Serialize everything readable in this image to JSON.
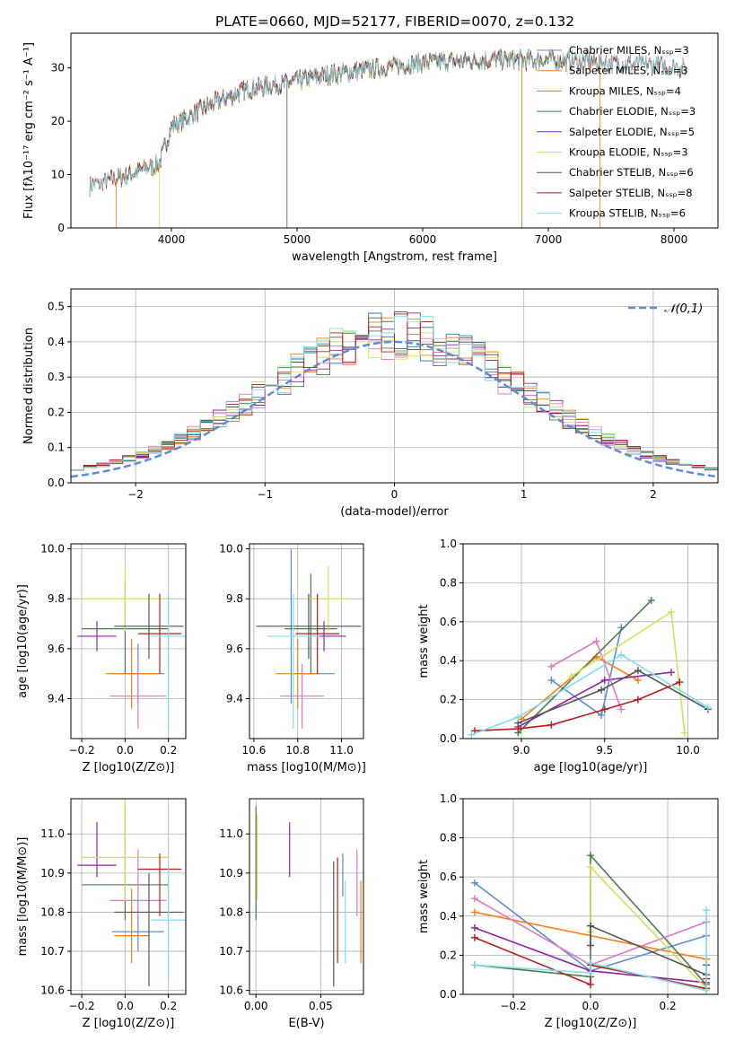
{
  "figure_title": "PLATE=0660, MJD=52177, FIBERID=0070, z=0.132",
  "chart_data": [
    {
      "id": "spectrum",
      "type": "line",
      "xlabel": "wavelength [Angstrom, rest frame]",
      "ylabel": "Flux [fλ10⁻¹⁷ erg cm⁻² s⁻¹ A⁻¹]",
      "xlim": [
        3200,
        8350
      ],
      "ylim": [
        0,
        36.5
      ],
      "xticks": [
        4000,
        5000,
        6000,
        7000,
        8000
      ],
      "yticks": [
        0,
        10,
        20,
        30
      ],
      "grid": false,
      "legend_position": "top-right",
      "continuum": {
        "x": [
          3350,
          3600,
          3900,
          4000,
          4300,
          4600,
          4900,
          5200,
          5500,
          6000,
          6500,
          7000,
          7500,
          8100
        ],
        "y": [
          8,
          9.5,
          12,
          19,
          23,
          26,
          27,
          28.5,
          29.5,
          31,
          31.5,
          31.5,
          31,
          30
        ]
      },
      "series": [
        {
          "name": "Chabrier MILES, N_SSP=3",
          "color": "#6a8fd6",
          "x_range": [
            3550,
            7400
          ]
        },
        {
          "name": "Salpeter MILES, N_SSP=3",
          "color": "#ff7f0e",
          "x_range": [
            3550,
            7400
          ]
        },
        {
          "name": "Kroupa MILES, N_SSP=4",
          "color": "#b8860b",
          "x_range": [
            3550,
            7400
          ]
        },
        {
          "name": "Chabrier ELODIE, N_SSP=3",
          "color": "#4c7d4c",
          "x_range": [
            3900,
            6800
          ]
        },
        {
          "name": "Salpeter ELODIE, N_SSP=5",
          "color": "#8e24aa",
          "x_range": [
            3900,
            6800
          ]
        },
        {
          "name": "Kroupa ELODIE, N_SSP=3",
          "color": "#d4e157",
          "x_range": [
            3900,
            6800
          ]
        },
        {
          "name": "Chabrier STELIB, N_SSP=6",
          "color": "#555555",
          "x_range": [
            3350,
            8100
          ]
        },
        {
          "name": "Salpeter STELIB, N_SSP=8",
          "color": "#b71c1c",
          "x_range": [
            3350,
            8100
          ]
        },
        {
          "name": "Kroupa STELIB, N_SSP=6",
          "color": "#80deea",
          "x_range": [
            3350,
            8100
          ]
        }
      ]
    },
    {
      "id": "residuals",
      "type": "histogram",
      "xlabel": "(data-model)/error",
      "ylabel": "Normed distribution",
      "xlim": [
        -2.5,
        2.5
      ],
      "ylim": [
        0,
        0.55
      ],
      "xticks": [
        -2,
        -1,
        0,
        1,
        2
      ],
      "yticks": [
        0.0,
        0.1,
        0.2,
        0.3,
        0.4,
        0.5
      ],
      "grid": true,
      "bin_width": 0.1,
      "reference_curve": {
        "name": "𝒩(0,1)",
        "mean": 0,
        "sigma": 1,
        "color": "#5b8ed6"
      },
      "legend_position": "top-right",
      "series_colors": [
        "#1f77b4",
        "#ff7f0e",
        "#4c7d4c",
        "#8e24aa",
        "#e377c2",
        "#d4e157",
        "#555555",
        "#b71c1c",
        "#80deea"
      ]
    },
    {
      "id": "age_vs_Z",
      "type": "errorbar",
      "xlabel": "Z [log10(Z/Z⊙)]",
      "ylabel": "age  [log10(age/yr)]",
      "xlim": [
        -0.25,
        0.28
      ],
      "ylim": [
        9.24,
        10.02
      ],
      "xticks": [
        -0.2,
        0.0,
        0.2
      ],
      "yticks": [
        9.4,
        9.6,
        9.8,
        10.0
      ],
      "grid": true,
      "points": [
        {
          "color": "#5b8ed6",
          "x": 0.06,
          "xerr": [
            0.12,
            0.12
          ],
          "y": 9.5,
          "yerr": [
            0.12,
            0.12
          ]
        },
        {
          "color": "#ff7f0e",
          "x": 0.03,
          "xerr": [
            0.12,
            0.12
          ],
          "y": 9.5,
          "yerr": [
            0.14,
            0.14
          ]
        },
        {
          "color": "#4c7d4c",
          "x": 0.0,
          "xerr": [
            0.2,
            0.2
          ],
          "y": 9.68,
          "yerr": [
            0.18,
            0.18
          ]
        },
        {
          "color": "#8e24aa",
          "x": -0.13,
          "xerr": [
            0.09,
            0.09
          ],
          "y": 9.65,
          "yerr": [
            0.06,
            0.06
          ]
        },
        {
          "color": "#e377c2",
          "x": 0.06,
          "xerr": [
            0.13,
            0.13
          ],
          "y": 9.41,
          "yerr": [
            0.13,
            0.13
          ]
        },
        {
          "color": "#d4e157",
          "x": 0.0,
          "xerr": [
            0.2,
            0.2
          ],
          "y": 9.8,
          "yerr": [
            0.13,
            0.13
          ]
        },
        {
          "color": "#555555",
          "x": 0.11,
          "xerr": [
            0.16,
            0.16
          ],
          "y": 9.69,
          "yerr": [
            0.13,
            0.13
          ]
        },
        {
          "color": "#b71c1c",
          "x": 0.16,
          "xerr": [
            0.1,
            0.1
          ],
          "y": 9.66,
          "yerr": [
            0.16,
            0.16
          ]
        },
        {
          "color": "#80deea",
          "x": 0.2,
          "xerr": [
            0.08,
            0.08
          ],
          "y": 9.65,
          "yerr": [
            0.37,
            0.17
          ]
        }
      ]
    },
    {
      "id": "age_vs_mass",
      "type": "errorbar",
      "xlabel": "mass [log10(M/M⊙)]",
      "ylabel": "",
      "xlim": [
        10.58,
        11.1
      ],
      "ylim": [
        9.24,
        10.02
      ],
      "xticks": [
        10.6,
        10.8,
        11.0
      ],
      "yticks": [
        9.4,
        9.6,
        9.8,
        10.0
      ],
      "grid": true,
      "points": [
        {
          "color": "#5b8ed6",
          "x": 10.77,
          "xerr": [
            0.0,
            0.2
          ],
          "y": 9.5,
          "yerr": [
            0.12,
            0.5
          ]
        },
        {
          "color": "#ff7f0e",
          "x": 10.8,
          "xerr": [
            0.1,
            0.1
          ],
          "y": 9.5,
          "yerr": [
            0.14,
            0.14
          ]
        },
        {
          "color": "#4c7d4c",
          "x": 10.86,
          "xerr": [
            0.12,
            0.12
          ],
          "y": 9.68,
          "yerr": [
            0.18,
            0.22
          ]
        },
        {
          "color": "#8e24aa",
          "x": 10.92,
          "xerr": [
            0.06,
            0.1
          ],
          "y": 9.65,
          "yerr": [
            0.06,
            0.06
          ]
        },
        {
          "color": "#e377c2",
          "x": 10.82,
          "xerr": [
            0.1,
            0.1
          ],
          "y": 9.41,
          "yerr": [
            0.13,
            0.13
          ]
        },
        {
          "color": "#d4e157",
          "x": 10.94,
          "xerr": [
            0.1,
            0.1
          ],
          "y": 9.8,
          "yerr": [
            0.13,
            0.13
          ]
        },
        {
          "color": "#555555",
          "x": 10.85,
          "xerr": [
            0.24,
            0.24
          ],
          "y": 9.69,
          "yerr": [
            0.13,
            0.13
          ]
        },
        {
          "color": "#b71c1c",
          "x": 10.89,
          "xerr": [
            0.1,
            0.1
          ],
          "y": 9.66,
          "yerr": [
            0.16,
            0.16
          ]
        },
        {
          "color": "#80deea",
          "x": 10.78,
          "xerr": [
            0.12,
            0.12
          ],
          "y": 9.65,
          "yerr": [
            0.37,
            0.17
          ]
        }
      ]
    },
    {
      "id": "massweight_vs_age",
      "type": "line",
      "xlabel": "age  [log10(age/yr)]",
      "ylabel": "mass weight",
      "xlim": [
        8.65,
        10.18
      ],
      "ylim": [
        0.0,
        1.0
      ],
      "xticks": [
        9.0,
        9.5,
        10.0
      ],
      "yticks": [
        0.0,
        0.2,
        0.4,
        0.6,
        0.8,
        1.0
      ],
      "grid": true,
      "series": [
        {
          "color": "#5b8ed6",
          "x": [
            9.18,
            9.48,
            9.6
          ],
          "y": [
            0.3,
            0.12,
            0.57
          ]
        },
        {
          "color": "#ff7f0e",
          "x": [
            9.0,
            9.45,
            9.7
          ],
          "y": [
            0.1,
            0.42,
            0.3
          ]
        },
        {
          "color": "#4c7d4c",
          "x": [
            8.98,
            9.78
          ],
          "y": [
            0.03,
            0.71
          ]
        },
        {
          "color": "#8e24aa",
          "x": [
            8.98,
            9.5,
            9.9
          ],
          "y": [
            0.06,
            0.3,
            0.34
          ]
        },
        {
          "color": "#e377c2",
          "x": [
            9.18,
            9.45,
            9.6
          ],
          "y": [
            0.37,
            0.5,
            0.15
          ]
        },
        {
          "color": "#d4e157",
          "x": [
            9.3,
            9.9,
            9.98
          ],
          "y": [
            0.32,
            0.65,
            0.03
          ]
        },
        {
          "color": "#555555",
          "x": [
            8.98,
            9.48,
            9.7,
            10.12
          ],
          "y": [
            0.08,
            0.25,
            0.35,
            0.15
          ]
        },
        {
          "color": "#b71c1c",
          "x": [
            8.72,
            8.98,
            9.18,
            9.5,
            9.7,
            9.95
          ],
          "y": [
            0.04,
            0.05,
            0.07,
            0.15,
            0.2,
            0.29
          ]
        },
        {
          "color": "#80deea",
          "x": [
            8.7,
            8.98,
            9.6,
            10.12
          ],
          "y": [
            0.02,
            0.11,
            0.43,
            0.16
          ]
        }
      ]
    },
    {
      "id": "mass_vs_Z",
      "type": "errorbar",
      "xlabel": "Z [log10(Z/Z⊙)]",
      "ylabel": "mass [log10(M/M⊙)]",
      "xlim": [
        -0.25,
        0.28
      ],
      "ylim": [
        10.59,
        11.09
      ],
      "xticks": [
        -0.2,
        0.0,
        0.2
      ],
      "yticks": [
        10.6,
        10.7,
        10.8,
        10.9,
        11.0
      ],
      "grid": true,
      "points": [
        {
          "color": "#5b8ed6",
          "x": 0.06,
          "xerr": [
            0.12,
            0.12
          ],
          "y": 10.75,
          "yerr": [
            0.05,
            0.08
          ]
        },
        {
          "color": "#ff7f0e",
          "x": 0.03,
          "xerr": [
            0.08,
            0.08
          ],
          "y": 10.74,
          "yerr": [
            0.07,
            0.12
          ]
        },
        {
          "color": "#4c7d4c",
          "x": 0.0,
          "xerr": [
            0.2,
            0.2
          ],
          "y": 10.87,
          "yerr": [
            0.09,
            0.2
          ]
        },
        {
          "color": "#8e24aa",
          "x": -0.13,
          "xerr": [
            0.09,
            0.09
          ],
          "y": 10.92,
          "yerr": [
            0.03,
            0.11
          ]
        },
        {
          "color": "#e377c2",
          "x": 0.06,
          "xerr": [
            0.13,
            0.13
          ],
          "y": 10.83,
          "yerr": [
            0.05,
            0.13
          ]
        },
        {
          "color": "#d4e157",
          "x": 0.0,
          "xerr": [
            0.2,
            0.2
          ],
          "y": 10.94,
          "yerr": [
            0.11,
            0.19
          ]
        },
        {
          "color": "#555555",
          "x": 0.11,
          "xerr": [
            0.16,
            0.16
          ],
          "y": 10.8,
          "yerr": [
            0.19,
            0.1
          ]
        },
        {
          "color": "#b71c1c",
          "x": 0.16,
          "xerr": [
            0.1,
            0.1
          ],
          "y": 10.91,
          "yerr": [
            0.12,
            0.04
          ]
        },
        {
          "color": "#80deea",
          "x": 0.2,
          "xerr": [
            0.08,
            0.08
          ],
          "y": 10.78,
          "yerr": [
            0.15,
            0.14
          ]
        }
      ]
    },
    {
      "id": "mass_vs_EBV",
      "type": "errorbar",
      "xlabel": "E(B-V)",
      "ylabel": "",
      "xlim": [
        -0.005,
        0.083
      ],
      "ylim": [
        10.59,
        11.09
      ],
      "xticks": [
        0.0,
        0.05
      ],
      "yticks": [
        10.6,
        10.7,
        10.8,
        10.9,
        11.0
      ],
      "grid": true,
      "points": [
        {
          "color": "#5b8ed6",
          "x": 0.067,
          "y": 10.92,
          "yerr": [
            0.08,
            0.03
          ]
        },
        {
          "color": "#ff7f0e",
          "x": 0.081,
          "y": 10.77,
          "yerr": [
            0.1,
            0.11
          ]
        },
        {
          "color": "#4c7d4c",
          "x": 0.0,
          "y": 10.87,
          "yerr": [
            0.09,
            0.2
          ]
        },
        {
          "color": "#8e24aa",
          "x": 0.026,
          "y": 10.96,
          "yerr": [
            0.07,
            0.07
          ]
        },
        {
          "color": "#e377c2",
          "x": 0.078,
          "y": 10.87,
          "yerr": [
            0.08,
            0.09
          ]
        },
        {
          "color": "#d4e157",
          "x": 0.001,
          "y": 10.94,
          "yerr": [
            0.11,
            0.11
          ]
        },
        {
          "color": "#555555",
          "x": 0.06,
          "y": 10.77,
          "yerr": [
            0.16,
            0.16
          ]
        },
        {
          "color": "#b71c1c",
          "x": 0.063,
          "y": 10.79,
          "yerr": [
            0.12,
            0.15
          ]
        },
        {
          "color": "#80deea",
          "x": 0.069,
          "y": 10.78,
          "yerr": [
            0.11,
            0.1
          ]
        }
      ]
    },
    {
      "id": "massweight_vs_Z",
      "type": "line",
      "xlabel": "Z [log10(Z/Z⊙)]",
      "ylabel": "mass weight",
      "xlim": [
        -0.33,
        0.33
      ],
      "ylim": [
        0.0,
        1.0
      ],
      "xticks": [
        -0.2,
        0.0,
        0.2
      ],
      "yticks": [
        0.0,
        0.2,
        0.4,
        0.6,
        0.8,
        1.0
      ],
      "grid": true,
      "series": [
        {
          "color": "#5b8ed6",
          "x": [
            -0.3,
            0.0,
            0.3
          ],
          "y": [
            0.57,
            0.12,
            0.3
          ]
        },
        {
          "color": "#ff7f0e",
          "x": [
            -0.3,
            0.3
          ],
          "y": [
            0.42,
            0.18
          ]
        },
        {
          "color": "#4c7d4c",
          "x": [
            -0.3,
            0.0,
            0.0,
            0.3
          ],
          "y": [
            0.15,
            0.09,
            0.71,
            0.05
          ]
        },
        {
          "color": "#8e24aa",
          "x": [
            -0.3,
            0.0,
            0.3
          ],
          "y": [
            0.34,
            0.12,
            0.06
          ]
        },
        {
          "color": "#e377c2",
          "x": [
            -0.3,
            0.0,
            0.3
          ],
          "y": [
            0.49,
            0.15,
            0.37
          ]
        },
        {
          "color": "#d4e157",
          "x": [
            0.0,
            0.0,
            0.3
          ],
          "y": [
            0.32,
            0.65,
            0.03
          ]
        },
        {
          "color": "#555555",
          "x": [
            0.0,
            0.0,
            0.3,
            0.3
          ],
          "y": [
            0.25,
            0.35,
            0.1,
            0.15
          ]
        },
        {
          "color": "#b71c1c",
          "x": [
            -0.3,
            0.0,
            0.0,
            0.3,
            0.3
          ],
          "y": [
            0.29,
            0.05,
            0.15,
            0.03,
            0.08
          ]
        },
        {
          "color": "#80deea",
          "x": [
            -0.3,
            0.0,
            0.0,
            0.3,
            0.3
          ],
          "y": [
            0.15,
            0.11,
            0.16,
            0.02,
            0.43
          ]
        }
      ]
    }
  ]
}
